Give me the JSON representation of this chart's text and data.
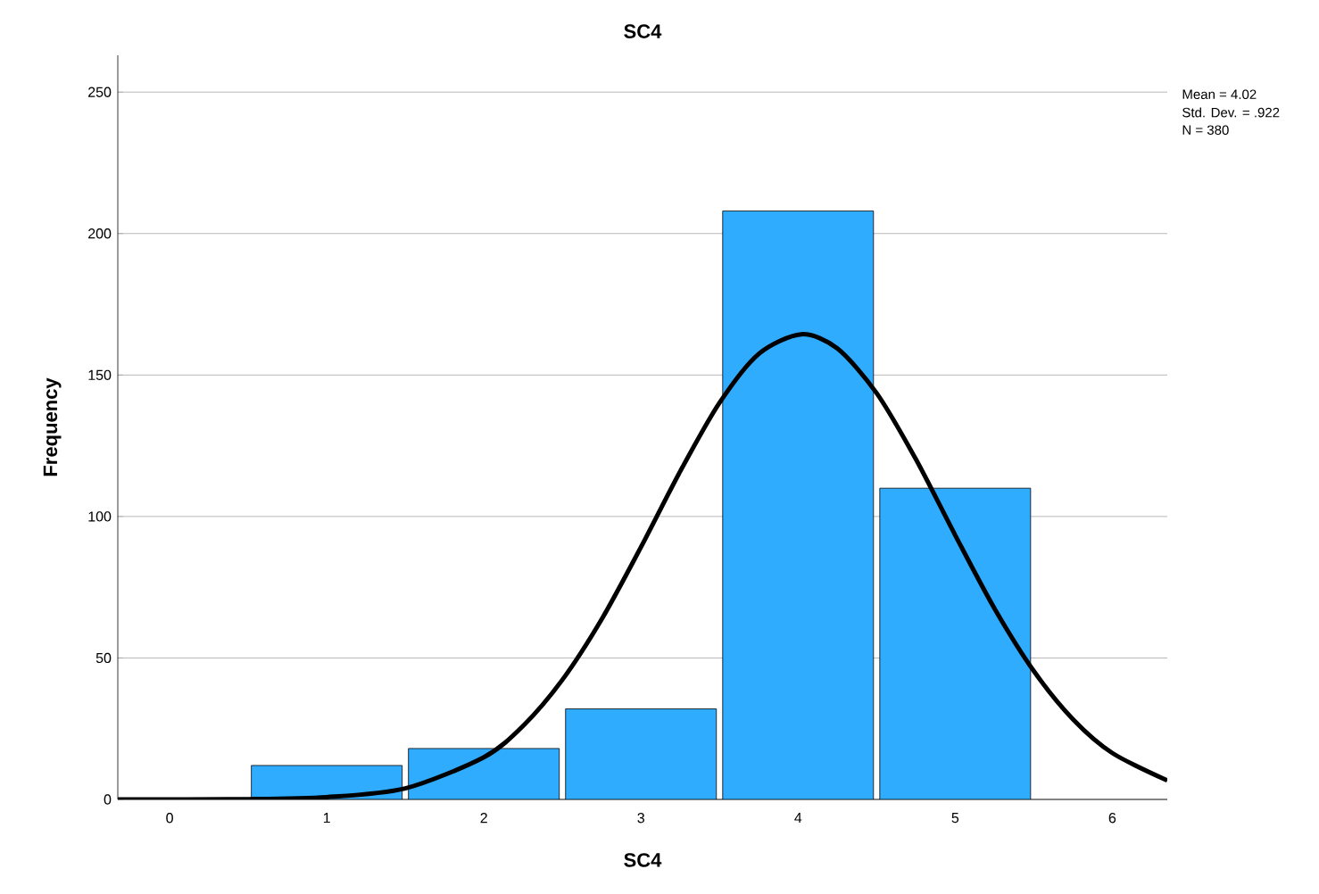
{
  "chart_data": {
    "type": "histogram",
    "title": "SC4",
    "xlabel": "SC4",
    "ylabel": "Frequency",
    "bins": [
      0.5,
      1.5,
      2.5,
      3.5,
      4.5,
      5.5
    ],
    "values": [
      12,
      18,
      32,
      208,
      110
    ],
    "color": "#30acff",
    "series": [
      {
        "type": "line",
        "color": "#000000",
        "x": [
          -0.33,
          0.5,
          1,
          1.5,
          2,
          2.25,
          2.5,
          2.75,
          3,
          3.25,
          3.5,
          3.75,
          4.02,
          4.25,
          4.5,
          4.75,
          5,
          5.25,
          5.5,
          5.75,
          6,
          6.35
        ],
        "values": [
          0,
          0.1,
          0.8,
          3.9,
          14.9,
          26,
          42.3,
          63.7,
          89.2,
          116,
          140.2,
          157.5,
          164.4,
          159.4,
          143.6,
          120.2,
          93.4,
          67.5,
          45.4,
          28.3,
          16.4,
          6.7
        ]
      }
    ],
    "xlim": [
      -0.33,
      6.35
    ],
    "ylim": [
      0,
      263
    ],
    "xticks": [
      0,
      1,
      2,
      3,
      4,
      5,
      6
    ],
    "yticks": [
      0,
      50,
      100,
      150,
      200,
      250
    ],
    "grid": "y",
    "annotations": [
      "Mean = 4.02",
      "Std. Dev. =  .922",
      "N = 380"
    ]
  }
}
